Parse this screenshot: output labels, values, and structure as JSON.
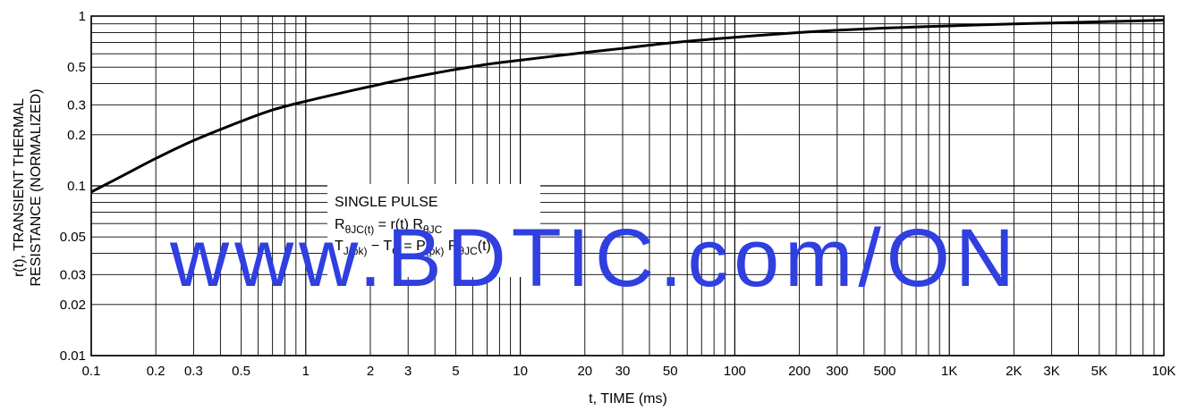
{
  "chart_data": {
    "type": "line",
    "title": "",
    "xlabel": "t, TIME (ms)",
    "ylabel_line1": "r(t), TRANSIENT THERMAL",
    "ylabel_line2": "RESISTANCE (NORMALIZED)",
    "x_scale": "log",
    "y_scale": "log",
    "xlim": [
      0.1,
      10000
    ],
    "ylim": [
      0.01,
      1
    ],
    "grid": true,
    "x_ticks": [
      {
        "value": 0.1,
        "label": "0.1"
      },
      {
        "value": 0.2,
        "label": "0.2"
      },
      {
        "value": 0.3,
        "label": "0.3"
      },
      {
        "value": 0.5,
        "label": "0.5"
      },
      {
        "value": 1,
        "label": "1"
      },
      {
        "value": 2,
        "label": "2"
      },
      {
        "value": 3,
        "label": "3"
      },
      {
        "value": 5,
        "label": "5"
      },
      {
        "value": 10,
        "label": "10"
      },
      {
        "value": 20,
        "label": "20"
      },
      {
        "value": 30,
        "label": "30"
      },
      {
        "value": 50,
        "label": "50"
      },
      {
        "value": 100,
        "label": "100"
      },
      {
        "value": 200,
        "label": "200"
      },
      {
        "value": 300,
        "label": "300"
      },
      {
        "value": 500,
        "label": "500"
      },
      {
        "value": 1000,
        "label": "1K"
      },
      {
        "value": 2000,
        "label": "2K"
      },
      {
        "value": 3000,
        "label": "3K"
      },
      {
        "value": 5000,
        "label": "5K"
      },
      {
        "value": 10000,
        "label": "10K"
      }
    ],
    "y_ticks": [
      {
        "value": 1,
        "label": "1"
      },
      {
        "value": 0.5,
        "label": "0.5"
      },
      {
        "value": 0.3,
        "label": "0.3"
      },
      {
        "value": 0.2,
        "label": "0.2"
      },
      {
        "value": 0.1,
        "label": "0.1"
      },
      {
        "value": 0.05,
        "label": "0.05"
      },
      {
        "value": 0.03,
        "label": "0.03"
      },
      {
        "value": 0.02,
        "label": "0.02"
      },
      {
        "value": 0.01,
        "label": "0.01"
      }
    ],
    "series": [
      {
        "color": "#000000",
        "x": [
          0.1,
          0.15,
          0.2,
          0.3,
          0.5,
          0.7,
          1,
          1.5,
          2,
          3,
          5,
          7,
          10,
          20,
          30,
          50,
          100,
          200,
          300,
          500,
          1000,
          2000,
          3000,
          5000,
          10000
        ],
        "y": [
          0.092,
          0.12,
          0.145,
          0.185,
          0.24,
          0.28,
          0.315,
          0.355,
          0.385,
          0.43,
          0.485,
          0.52,
          0.55,
          0.61,
          0.645,
          0.695,
          0.75,
          0.8,
          0.825,
          0.85,
          0.875,
          0.9,
          0.91,
          0.925,
          0.945
        ]
      }
    ],
    "annotation": {
      "line1": "SINGLE PULSE",
      "line2": {
        "r_main": "R",
        "r_sub": "θJC(t)",
        "mid": " = r(t) R",
        "r2_sub": "θJC"
      },
      "line3": {
        "t_main": "T",
        "t_sub": "J(pk)",
        "mid1": " − T",
        "tc_sub": "C",
        "mid2": " = P",
        "p_sub": "(pk)",
        "mid3": " R",
        "r_sub": "θJC",
        "end": "(t)"
      }
    }
  },
  "watermark": {
    "text": "www.BDTIC.com/ON",
    "color": "#2f3fe0"
  }
}
